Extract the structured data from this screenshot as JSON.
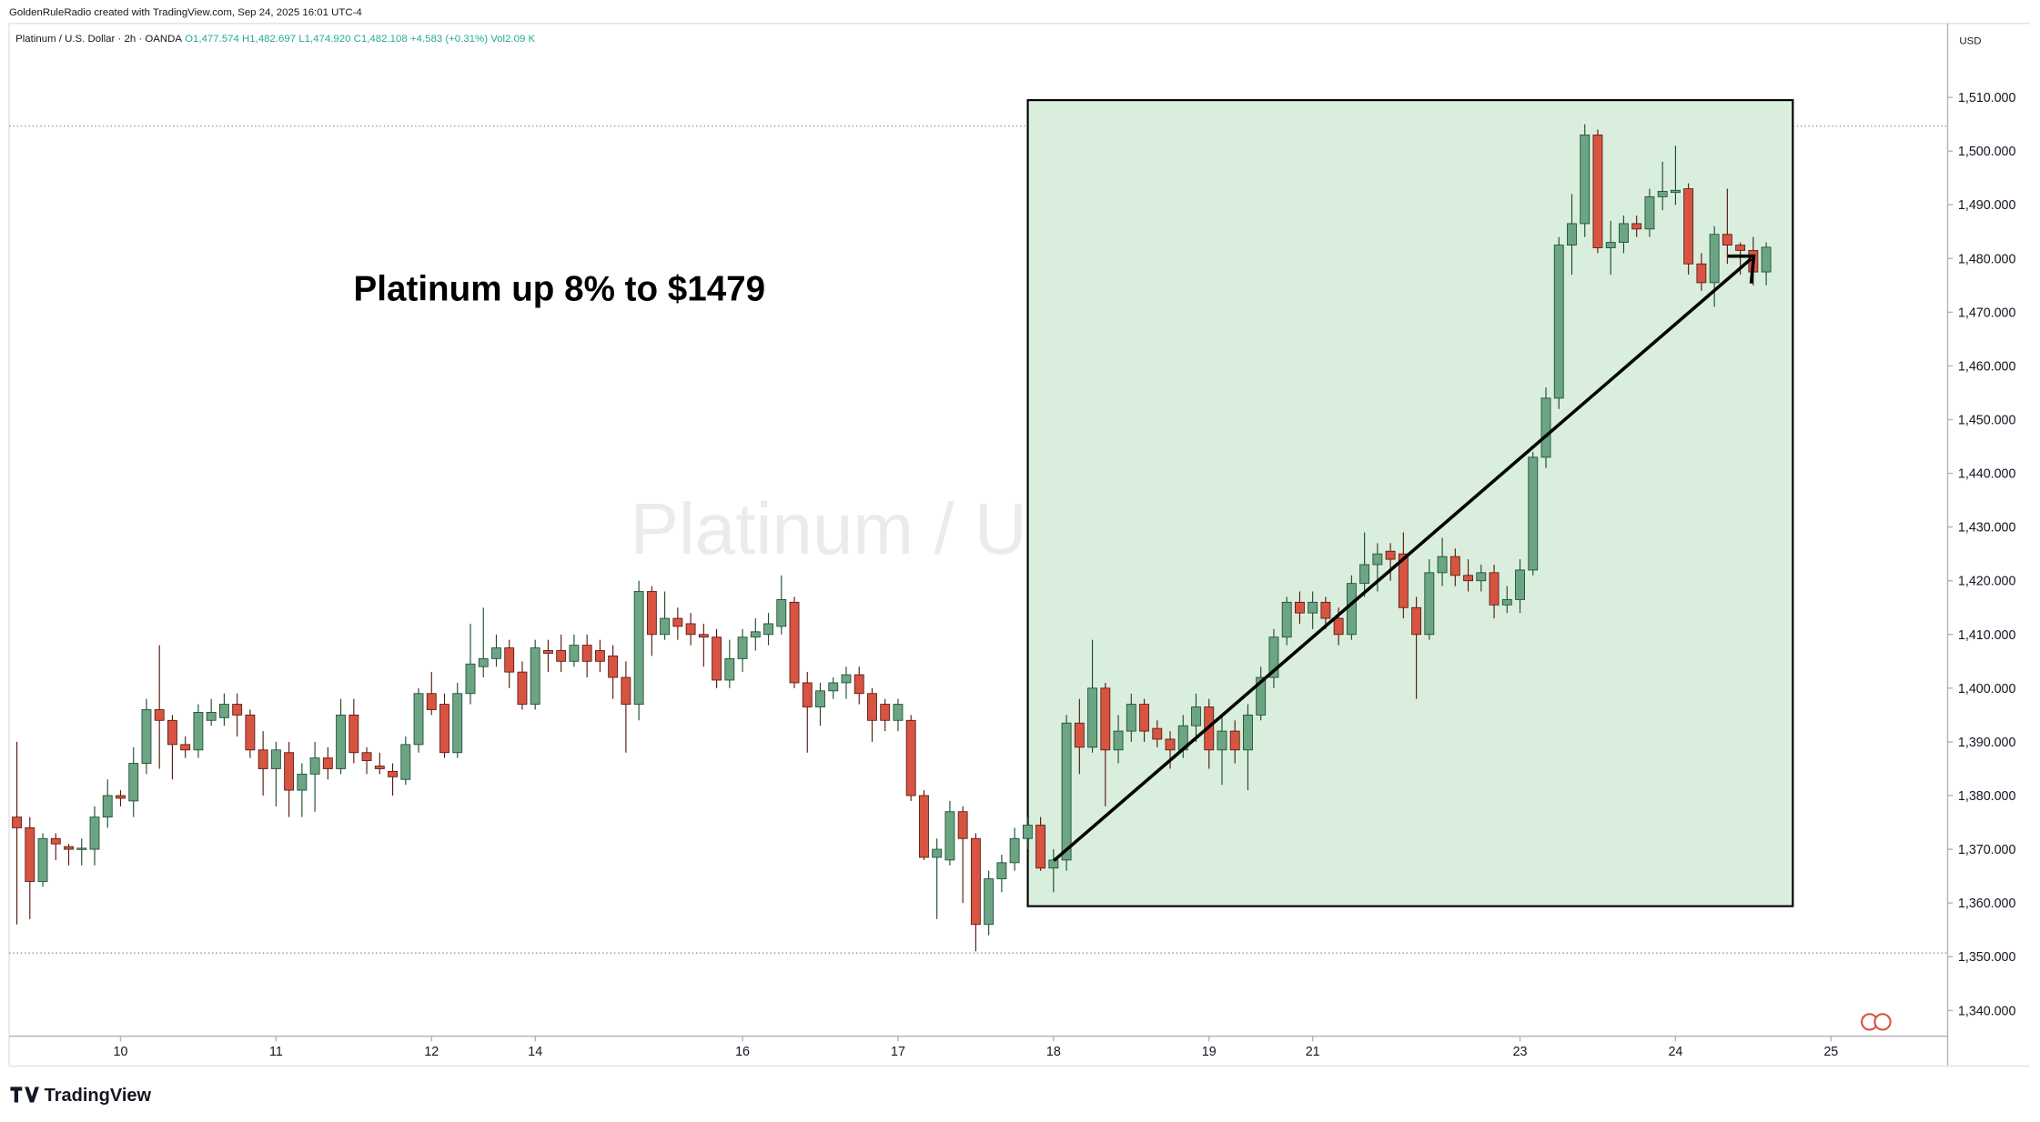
{
  "header": {
    "credit": "GoldenRuleRadio created with TradingView.com, Sep 24, 2025 16:01 UTC-4",
    "symbol": "Platinum / U.S. Dollar · 2h · OANDA",
    "open": "O1,477.574",
    "high": "H1,482.697",
    "low": "L1,474.920",
    "close": "C1,482.108",
    "change": "+4.583 (+0.31%)",
    "volume": "Vol2.09 K"
  },
  "chart_data": {
    "type": "candlestick",
    "watermark": "Platinum / U.S. Dollar",
    "annotation": "Platinum up 8% to $1479",
    "currency": "USD",
    "up_color": "#6ba583",
    "down_color": "#d75442",
    "open": [
      1376,
      1374,
      1364,
      1372,
      1370.5,
      1370,
      1370,
      1376,
      1380,
      1379,
      1386,
      1396,
      1394,
      1389.5,
      1388.5,
      1394,
      1394.5,
      1397,
      1395,
      1388.5,
      1385,
      1388,
      1381,
      1384,
      1387,
      1385,
      1395,
      1388,
      1385.5,
      1384.5,
      1383,
      1389.5,
      1399,
      1397,
      1388,
      1399,
      1404,
      1405.5,
      1407.5,
      1403,
      1397,
      1407,
      1407,
      1405,
      1408,
      1407,
      1406,
      1402,
      1397,
      1418,
      1410,
      1413,
      1412,
      1410,
      1409.5,
      1401.5,
      1405.5,
      1409.5,
      1410,
      1411.5,
      1416,
      1401,
      1396.5,
      1399.5,
      1401,
      1402.5,
      1399,
      1397,
      1394,
      1394,
      1380,
      1368.5,
      1368,
      1377,
      1372,
      1356,
      1364.5,
      1367.5,
      1372,
      1374.5,
      1366.5,
      1368,
      1393.5,
      1389,
      1400,
      1388.5,
      1392,
      1397,
      1392.5,
      1390.5,
      1388.5,
      1393,
      1396.5,
      1388.5,
      1392,
      1388.5,
      1395,
      1402,
      1409.5,
      1416,
      1414,
      1416,
      1413,
      1410,
      1419.5,
      1423,
      1425.5,
      1425,
      1415,
      1410,
      1421.5,
      1424.5,
      1421,
      1420,
      1421.5,
      1415.5,
      1416.5,
      1422,
      1443,
      1454,
      1482.5,
      1486.5,
      1503,
      1482,
      1483,
      1486.5,
      1485.5,
      1491.5,
      1492.3,
      1493,
      1479,
      1475.5,
      1484.5,
      1482.5,
      1481.5,
      1477.5
    ],
    "high": [
      1390,
      1376,
      1373,
      1373,
      1371,
      1372,
      1378,
      1383,
      1381,
      1389,
      1398,
      1408,
      1395,
      1391,
      1397,
      1398,
      1399,
      1399,
      1396,
      1392,
      1390,
      1390,
      1386,
      1390,
      1389,
      1398,
      1398,
      1389,
      1388,
      1386,
      1391,
      1400,
      1403,
      1399,
      1401,
      1412,
      1415,
      1410,
      1409,
      1405,
      1409,
      1409,
      1410,
      1410,
      1410,
      1409,
      1408,
      1405,
      1420,
      1419,
      1418,
      1415,
      1414,
      1412,
      1411,
      1409,
      1411,
      1413,
      1414,
      1421,
      1417,
      1403,
      1401,
      1402,
      1404,
      1404,
      1400,
      1398,
      1398,
      1395,
      1381,
      1372,
      1379,
      1378,
      1373,
      1366,
      1369,
      1374,
      1376,
      1376,
      1370,
      1395,
      1398,
      1409,
      1401,
      1395,
      1399,
      1398,
      1394,
      1392,
      1395,
      1399,
      1398,
      1395,
      1394,
      1397,
      1404,
      1411,
      1417,
      1418,
      1418,
      1417,
      1415,
      1421,
      1429,
      1427,
      1427,
      1429,
      1417,
      1424,
      1428,
      1426,
      1424,
      1423,
      1423,
      1419,
      1424,
      1444,
      1456,
      1484,
      1492,
      1505,
      1504,
      1487,
      1488,
      1488,
      1493,
      1498,
      1501,
      1494,
      1481,
      1486,
      1493,
      1483,
      1484,
      1483
    ],
    "low": [
      1356,
      1357,
      1363,
      1368,
      1367,
      1367,
      1367,
      1374,
      1378,
      1376,
      1384,
      1385,
      1383,
      1387,
      1387,
      1393,
      1393,
      1391,
      1387,
      1380,
      1378,
      1376,
      1376,
      1377,
      1383,
      1384,
      1386,
      1384,
      1384,
      1380,
      1382,
      1388,
      1395,
      1387,
      1387,
      1397,
      1402,
      1404,
      1400,
      1396,
      1396,
      1403,
      1403,
      1404,
      1402,
      1403,
      1398,
      1388,
      1394,
      1406,
      1409,
      1409,
      1408,
      1404,
      1400,
      1400,
      1403,
      1407,
      1408,
      1410,
      1400,
      1388,
      1393,
      1398,
      1398,
      1397,
      1390,
      1392,
      1392,
      1379,
      1368,
      1357,
      1367,
      1360,
      1351,
      1354,
      1362,
      1366,
      1370,
      1366,
      1362,
      1366,
      1384,
      1388,
      1378,
      1386,
      1390,
      1390,
      1389,
      1385,
      1387,
      1390,
      1385,
      1382,
      1386,
      1381,
      1394,
      1400,
      1408,
      1412,
      1411,
      1411,
      1408,
      1409,
      1417,
      1418,
      1420,
      1413,
      1398,
      1409,
      1419,
      1419,
      1418,
      1418,
      1413,
      1414,
      1414,
      1421,
      1441,
      1452,
      1477,
      1484,
      1481,
      1477,
      1481,
      1484,
      1484,
      1489,
      1490,
      1477,
      1474,
      1471,
      1479,
      1477,
      1475,
      1475
    ],
    "close": [
      1374,
      1364,
      1372,
      1371,
      1370,
      1370.2,
      1376,
      1380,
      1379.5,
      1386,
      1396,
      1394,
      1389.5,
      1388.5,
      1395.5,
      1395.5,
      1397,
      1395,
      1388.5,
      1385,
      1388.5,
      1381,
      1384,
      1387,
      1385,
      1395,
      1388,
      1386.5,
      1385,
      1383.5,
      1389.5,
      1399,
      1396,
      1388,
      1399,
      1404.5,
      1405.5,
      1407.5,
      1403,
      1397,
      1407.5,
      1406.5,
      1405,
      1408,
      1405,
      1405,
      1402,
      1397,
      1418,
      1410,
      1413,
      1411.5,
      1410,
      1409.5,
      1401.5,
      1405.5,
      1409.5,
      1410.5,
      1412,
      1416.5,
      1401,
      1396.5,
      1399.5,
      1401,
      1402.5,
      1399,
      1394,
      1394,
      1397,
      1380,
      1368.5,
      1370,
      1377,
      1372,
      1356,
      1364.5,
      1367.5,
      1372,
      1374.5,
      1366.5,
      1368,
      1393.5,
      1389,
      1400,
      1388.5,
      1392,
      1397,
      1392,
      1390.5,
      1388.5,
      1393,
      1396.5,
      1388.5,
      1392,
      1388.5,
      1395,
      1402,
      1409.5,
      1416,
      1414,
      1416,
      1413,
      1410,
      1419.5,
      1423,
      1425,
      1424,
      1415,
      1410,
      1421.5,
      1424.5,
      1421,
      1420,
      1421.5,
      1415.5,
      1416.5,
      1422,
      1443,
      1454,
      1482.5,
      1486.5,
      1503,
      1482,
      1483,
      1486.5,
      1485.5,
      1491.5,
      1492.5,
      1492.7,
      1479,
      1475.5,
      1484.5,
      1482.5,
      1481.5,
      1477.5,
      1482.1
    ],
    "xlim": [
      -0.6,
      149
    ],
    "xticks": [
      {
        "value": 8,
        "label": "10"
      },
      {
        "value": 20,
        "label": "11"
      },
      {
        "value": 32,
        "label": "12"
      },
      {
        "value": 40,
        "label": "14"
      },
      {
        "value": 56,
        "label": "16"
      },
      {
        "value": 68,
        "label": "17"
      },
      {
        "value": 80,
        "label": "18"
      },
      {
        "value": 92,
        "label": "19"
      },
      {
        "value": 100,
        "label": "21"
      },
      {
        "value": 116,
        "label": "23"
      },
      {
        "value": 128,
        "label": "24"
      },
      {
        "value": 140,
        "label": "25"
      }
    ],
    "ylim": [
      1335.2,
      1524.5
    ],
    "yticks": [
      {
        "value": 1340,
        "label": "1,340.000"
      },
      {
        "value": 1350,
        "label": "1,350.000"
      },
      {
        "value": 1360,
        "label": "1,360.000"
      },
      {
        "value": 1370,
        "label": "1,370.000"
      },
      {
        "value": 1380,
        "label": "1,380.000"
      },
      {
        "value": 1390,
        "label": "1,390.000"
      },
      {
        "value": 1400,
        "label": "1,400.000"
      },
      {
        "value": 1410,
        "label": "1,410.000"
      },
      {
        "value": 1420,
        "label": "1,420.000"
      },
      {
        "value": 1430,
        "label": "1,430.000"
      },
      {
        "value": 1440,
        "label": "1,440.000"
      },
      {
        "value": 1450,
        "label": "1,450.000"
      },
      {
        "value": 1460,
        "label": "1,460.000"
      },
      {
        "value": 1470,
        "label": "1,470.000"
      },
      {
        "value": 1480,
        "label": "1,480.000"
      },
      {
        "value": 1490,
        "label": "1,490.000"
      },
      {
        "value": 1500,
        "label": "1,500.000"
      },
      {
        "value": 1510,
        "label": "1,510.000"
      }
    ]
  },
  "footer": {
    "brand": "TradingView"
  }
}
